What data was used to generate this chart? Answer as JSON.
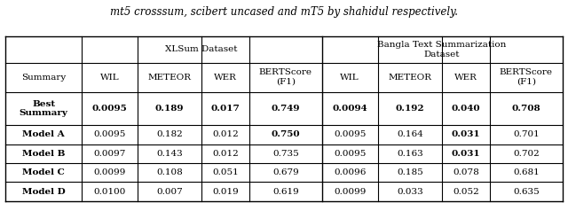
{
  "title_text": "mt5 crosssum, scibert uncased and mT5 by shahidul respectively.",
  "rows": [
    {
      "label": "Best\nSummary",
      "xlsum": [
        "0.0095",
        "0.189",
        "0.017",
        "0.749"
      ],
      "bangla": [
        "0.0094",
        "0.192",
        "0.040",
        "0.708"
      ],
      "bold_xlsum": [
        0,
        1,
        2,
        3
      ],
      "bold_bangla": [
        0,
        1,
        2,
        3
      ],
      "label_bold": true
    },
    {
      "label": "Model A",
      "xlsum": [
        "0.0095",
        "0.182",
        "0.012",
        "0.750"
      ],
      "bangla": [
        "0.0095",
        "0.164",
        "0.031",
        "0.701"
      ],
      "bold_xlsum": [
        3
      ],
      "bold_bangla": [
        2
      ],
      "label_bold": true
    },
    {
      "label": "Model B",
      "xlsum": [
        "0.0097",
        "0.143",
        "0.012",
        "0.735"
      ],
      "bangla": [
        "0.0095",
        "0.163",
        "0.031",
        "0.702"
      ],
      "bold_xlsum": [],
      "bold_bangla": [
        2
      ],
      "label_bold": true
    },
    {
      "label": "Model C",
      "xlsum": [
        "0.0099",
        "0.108",
        "0.051",
        "0.679"
      ],
      "bangla": [
        "0.0096",
        "0.185",
        "0.078",
        "0.681"
      ],
      "bold_xlsum": [],
      "bold_bangla": [],
      "label_bold": true
    },
    {
      "label": "Model D",
      "xlsum": [
        "0.0100",
        "0.007",
        "0.019",
        "0.619"
      ],
      "bangla": [
        "0.0099",
        "0.033",
        "0.052",
        "0.635"
      ],
      "bold_xlsum": [],
      "bold_bangla": [],
      "label_bold": true
    }
  ],
  "figsize": [
    6.4,
    2.29
  ],
  "dpi": 100
}
